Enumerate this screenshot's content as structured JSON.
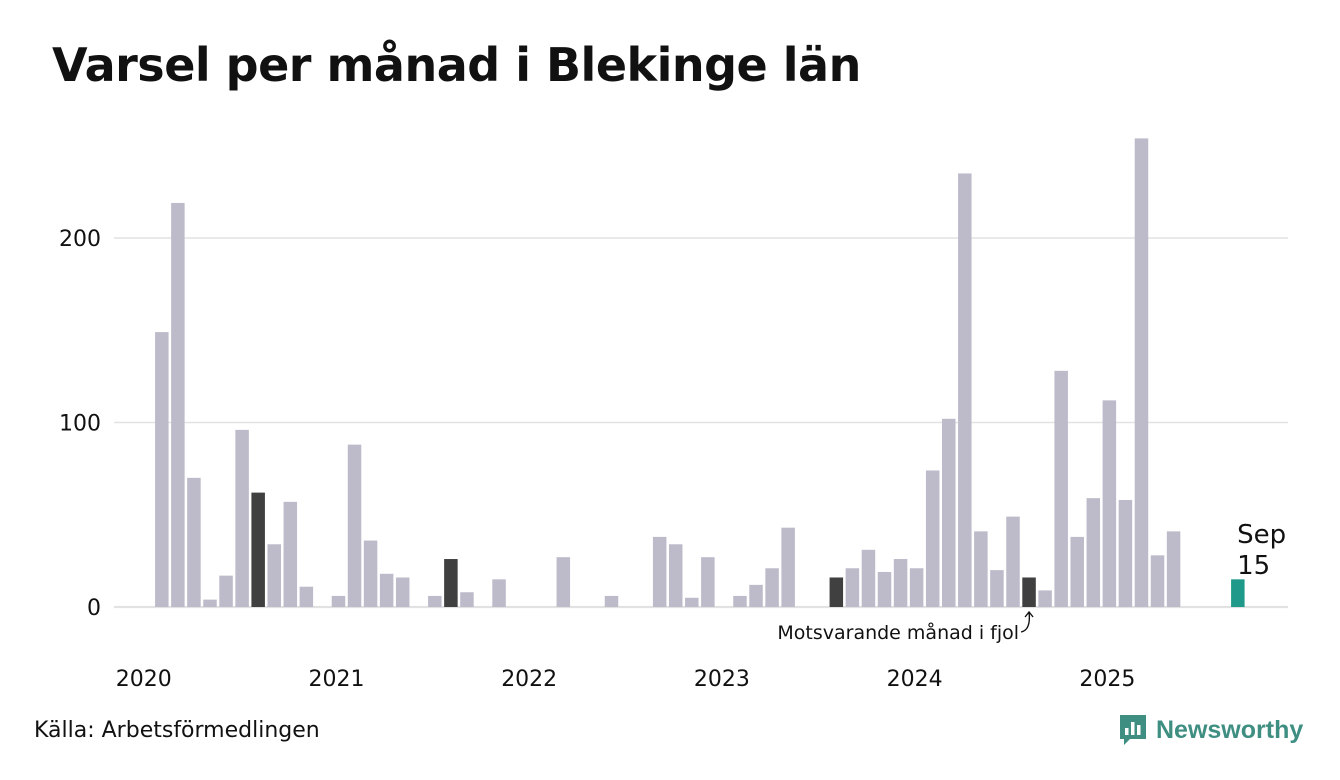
{
  "title": "Varsel per månad i Blekinge län",
  "source": "Källa: Arbetsförmedlingen",
  "brand": "Newsworthy",
  "colors": {
    "default": "#bdbbca",
    "highlight": "#404040",
    "current": "#1f9a8a",
    "grid": "#e2e2e2",
    "brand": "#3f8e82"
  },
  "chart_data": {
    "type": "bar",
    "title": "Varsel per månad i Blekinge län",
    "xlabel": "",
    "ylabel": "",
    "ylim": [
      0,
      260
    ],
    "yticks": [
      0,
      100,
      200
    ],
    "start": "2020-01",
    "year_labels": [
      "2020",
      "2021",
      "2022",
      "2023",
      "2024",
      "2025"
    ],
    "values": [
      0,
      149,
      219,
      70,
      4,
      17,
      96,
      62,
      34,
      57,
      11,
      0,
      6,
      88,
      36,
      18,
      16,
      0,
      6,
      26,
      8,
      0,
      15,
      0,
      0,
      0,
      27,
      0,
      0,
      6,
      0,
      0,
      38,
      34,
      5,
      27,
      0,
      6,
      12,
      21,
      43,
      0,
      0,
      16,
      21,
      31,
      19,
      26,
      21,
      74,
      102,
      235,
      41,
      20,
      49,
      16,
      9,
      128,
      38,
      59,
      112,
      58,
      254,
      28,
      41,
      0,
      0,
      0,
      15
    ],
    "highlight_indices": [
      7,
      19,
      43,
      55
    ],
    "current_index": 68,
    "last_label": {
      "month": "Sep",
      "value": "15"
    },
    "annotation": "Motsvarande månad i fjol"
  }
}
